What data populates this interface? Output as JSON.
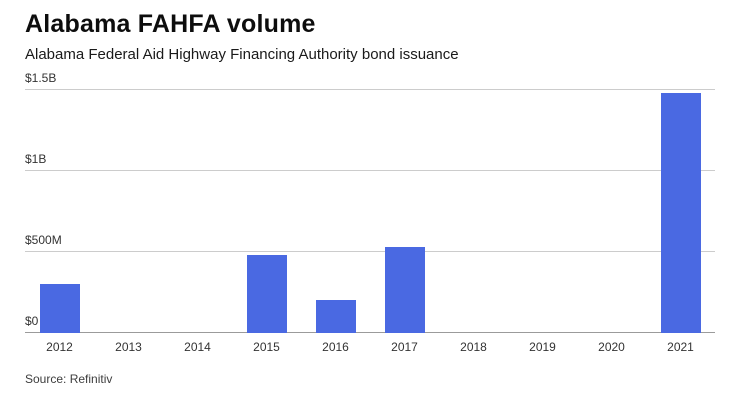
{
  "header": {
    "title": "Alabama FAHFA volume",
    "subtitle": "Alabama Federal Aid Highway Financing Authority bond issuance"
  },
  "footer": {
    "source": "Source: Refinitiv"
  },
  "chart_data": {
    "type": "bar",
    "title": "Alabama FAHFA volume",
    "subtitle": "Alabama Federal Aid Highway Financing Authority bond issuance",
    "categories": [
      "2012",
      "2013",
      "2014",
      "2015",
      "2016",
      "2017",
      "2018",
      "2019",
      "2020",
      "2021"
    ],
    "values": [
      300,
      0,
      0,
      480,
      200,
      530,
      0,
      0,
      0,
      1480
    ],
    "values_unit": "millions USD",
    "xlabel": "",
    "ylabel": "",
    "ylim": [
      0,
      1500
    ],
    "y_ticks": [
      {
        "value": 0,
        "label": "$0"
      },
      {
        "value": 500,
        "label": "$500M"
      },
      {
        "value": 1000,
        "label": "$1B"
      },
      {
        "value": 1500,
        "label": "$1.5B"
      }
    ],
    "bar_color": "#4a69e2",
    "grid": true,
    "legend": false,
    "source": "Source: Refinitiv"
  }
}
